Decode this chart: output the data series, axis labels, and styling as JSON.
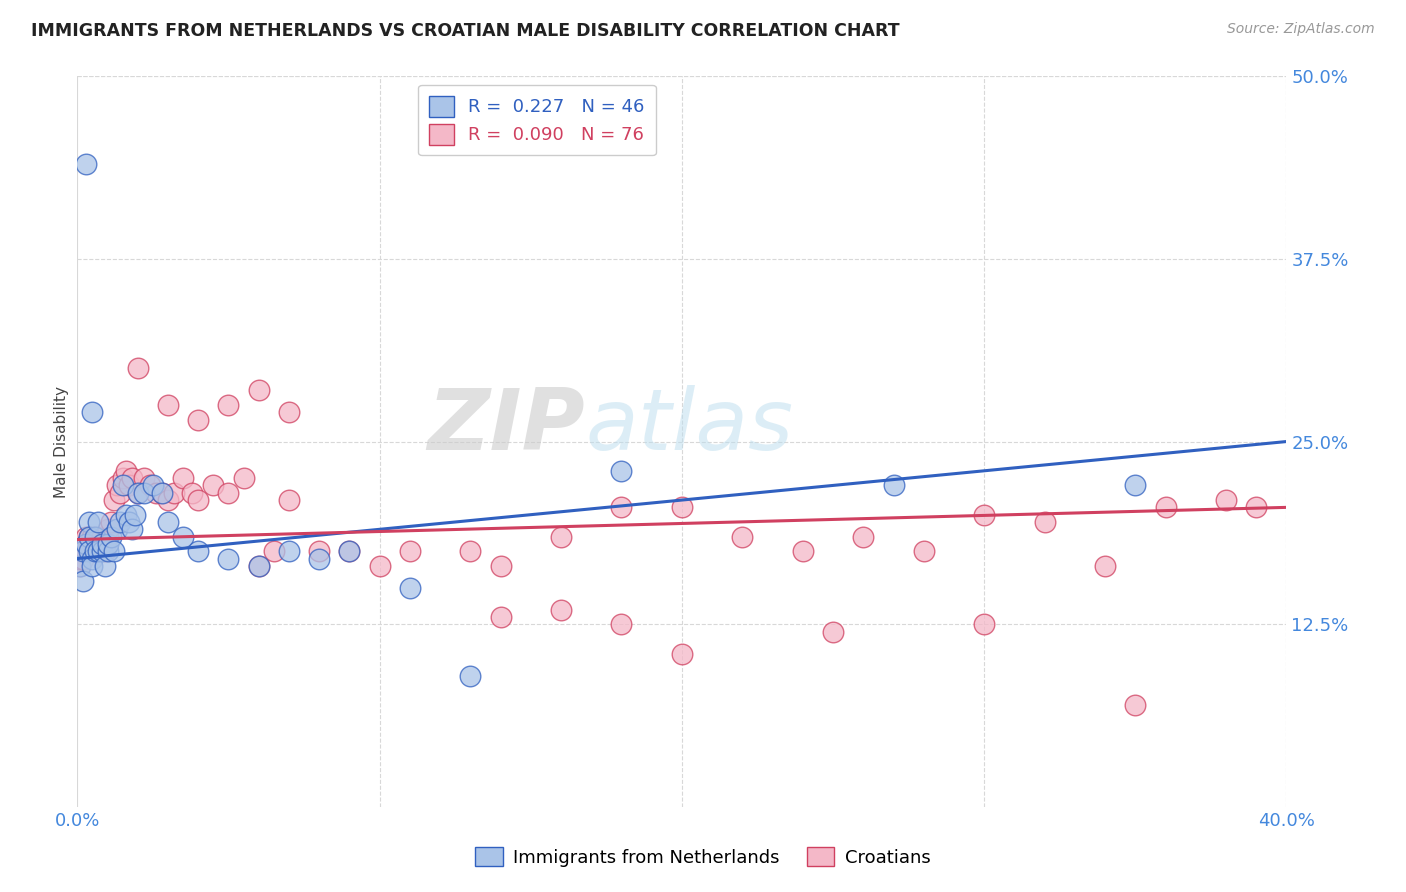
{
  "title": "IMMIGRANTS FROM NETHERLANDS VS CROATIAN MALE DISABILITY CORRELATION CHART",
  "source": "Source: ZipAtlas.com",
  "ylabel_label": "Male Disability",
  "xlim": [
    0.0,
    0.4
  ],
  "ylim": [
    0.0,
    0.5
  ],
  "xtick_labels": [
    "0.0%",
    "",
    "",
    "",
    "40.0%"
  ],
  "xticks": [
    0.0,
    0.1,
    0.2,
    0.3,
    0.4
  ],
  "ytick_labels": [
    "12.5%",
    "25.0%",
    "37.5%",
    "50.0%"
  ],
  "yticks": [
    0.125,
    0.25,
    0.375,
    0.5
  ],
  "background_color": "#ffffff",
  "grid_color": "#d8d8d8",
  "blue_color": "#aac4e8",
  "pink_color": "#f4b8c8",
  "blue_line_color": "#3060c0",
  "pink_line_color": "#d04060",
  "legend_R_blue": "0.227",
  "legend_N_blue": "46",
  "legend_R_pink": "0.090",
  "legend_N_pink": "76",
  "watermark_zip": "ZIP",
  "watermark_atlas": "atlas",
  "blue_scatter_x": [
    0.003,
    0.005,
    0.001,
    0.002,
    0.002,
    0.003,
    0.004,
    0.004,
    0.004,
    0.005,
    0.005,
    0.006,
    0.006,
    0.007,
    0.007,
    0.008,
    0.008,
    0.009,
    0.01,
    0.01,
    0.011,
    0.012,
    0.013,
    0.014,
    0.015,
    0.016,
    0.017,
    0.018,
    0.019,
    0.02,
    0.022,
    0.025,
    0.028,
    0.03,
    0.035,
    0.04,
    0.05,
    0.06,
    0.07,
    0.08,
    0.09,
    0.11,
    0.13,
    0.18,
    0.27,
    0.35
  ],
  "blue_scatter_y": [
    0.44,
    0.27,
    0.165,
    0.175,
    0.155,
    0.18,
    0.195,
    0.185,
    0.175,
    0.17,
    0.165,
    0.185,
    0.175,
    0.195,
    0.175,
    0.175,
    0.18,
    0.165,
    0.175,
    0.18,
    0.185,
    0.175,
    0.19,
    0.195,
    0.22,
    0.2,
    0.195,
    0.19,
    0.2,
    0.215,
    0.215,
    0.22,
    0.215,
    0.195,
    0.185,
    0.175,
    0.17,
    0.165,
    0.175,
    0.17,
    0.175,
    0.15,
    0.09,
    0.23,
    0.22,
    0.22
  ],
  "pink_scatter_x": [
    0.001,
    0.001,
    0.002,
    0.002,
    0.003,
    0.003,
    0.004,
    0.004,
    0.005,
    0.005,
    0.006,
    0.006,
    0.007,
    0.007,
    0.008,
    0.008,
    0.009,
    0.009,
    0.01,
    0.01,
    0.011,
    0.012,
    0.013,
    0.014,
    0.015,
    0.016,
    0.017,
    0.018,
    0.02,
    0.022,
    0.024,
    0.026,
    0.028,
    0.03,
    0.032,
    0.035,
    0.038,
    0.04,
    0.045,
    0.05,
    0.055,
    0.06,
    0.065,
    0.07,
    0.08,
    0.09,
    0.1,
    0.11,
    0.13,
    0.14,
    0.16,
    0.18,
    0.2,
    0.22,
    0.24,
    0.26,
    0.28,
    0.3,
    0.32,
    0.34,
    0.36,
    0.38,
    0.02,
    0.03,
    0.04,
    0.05,
    0.06,
    0.07,
    0.14,
    0.16,
    0.18,
    0.2,
    0.25,
    0.3,
    0.35,
    0.39
  ],
  "pink_scatter_y": [
    0.165,
    0.17,
    0.175,
    0.17,
    0.185,
    0.175,
    0.185,
    0.18,
    0.18,
    0.185,
    0.175,
    0.185,
    0.175,
    0.18,
    0.185,
    0.18,
    0.18,
    0.175,
    0.185,
    0.19,
    0.195,
    0.21,
    0.22,
    0.215,
    0.225,
    0.23,
    0.22,
    0.225,
    0.215,
    0.225,
    0.22,
    0.215,
    0.215,
    0.21,
    0.215,
    0.225,
    0.215,
    0.21,
    0.22,
    0.215,
    0.225,
    0.165,
    0.175,
    0.21,
    0.175,
    0.175,
    0.165,
    0.175,
    0.175,
    0.165,
    0.185,
    0.205,
    0.205,
    0.185,
    0.175,
    0.185,
    0.175,
    0.2,
    0.195,
    0.165,
    0.205,
    0.21,
    0.3,
    0.275,
    0.265,
    0.275,
    0.285,
    0.27,
    0.13,
    0.135,
    0.125,
    0.105,
    0.12,
    0.125,
    0.07,
    0.205
  ],
  "blue_line_x0": 0.0,
  "blue_line_y0": 0.17,
  "blue_line_x1": 0.4,
  "blue_line_y1": 0.25,
  "pink_line_x0": 0.0,
  "pink_line_y0": 0.183,
  "pink_line_x1": 0.4,
  "pink_line_y1": 0.205
}
